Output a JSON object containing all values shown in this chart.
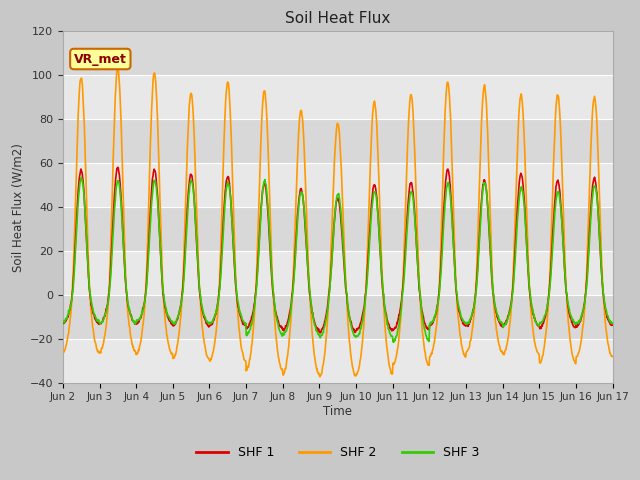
{
  "title": "Soil Heat Flux",
  "ylabel": "Soil Heat Flux (W/m2)",
  "xlabel": "Time",
  "ylim": [
    -40,
    120
  ],
  "yticks": [
    -40,
    -20,
    0,
    20,
    40,
    60,
    80,
    100,
    120
  ],
  "fig_bg": "#c8c8c8",
  "plot_bg_bands": [
    {
      "ymin": 100,
      "ymax": 120,
      "color": "#d8d8d8"
    },
    {
      "ymin": 80,
      "ymax": 100,
      "color": "#e8e8e8"
    },
    {
      "ymin": 60,
      "ymax": 80,
      "color": "#d8d8d8"
    },
    {
      "ymin": 40,
      "ymax": 60,
      "color": "#e8e8e8"
    },
    {
      "ymin": 20,
      "ymax": 40,
      "color": "#d8d8d8"
    },
    {
      "ymin": 0,
      "ymax": 20,
      "color": "#e8e8e8"
    },
    {
      "ymin": -20,
      "ymax": 0,
      "color": "#d8d8d8"
    },
    {
      "ymin": -40,
      "ymax": -20,
      "color": "#e8e8e8"
    }
  ],
  "series": {
    "SHF 1": {
      "color": "#dd0000",
      "linewidth": 1.2
    },
    "SHF 2": {
      "color": "#ff9900",
      "linewidth": 1.2
    },
    "SHF 3": {
      "color": "#33cc00",
      "linewidth": 1.2
    }
  },
  "annotation": {
    "text": "VR_met",
    "fontsize": 9,
    "bg": "#ffff99",
    "border": "#cc6600"
  },
  "xtick_labels": [
    "Jun 2",
    "Jun 3",
    "Jun 4",
    "Jun 5",
    "Jun 6",
    "Jun 7",
    "Jun 8",
    "Jun 9",
    "Jun 10",
    "Jun 11",
    "Jun 12",
    "Jun 13",
    "Jun 14",
    "Jun 15",
    "Jun 16",
    "Jun 17"
  ],
  "n_days": 15,
  "points_per_day": 96,
  "shf2_peaks": [
    99,
    103,
    101,
    92,
    97,
    93,
    84,
    78,
    88,
    91,
    97,
    95,
    91,
    91,
    90
  ],
  "shf2_troughs": [
    -26,
    -26,
    -27,
    -29,
    -30,
    -34,
    -36,
    -37,
    -36,
    -32,
    -28,
    -26,
    -27,
    -31,
    -28
  ],
  "shf1_peaks": [
    57,
    58,
    57,
    55,
    54,
    51,
    48,
    44,
    50,
    51,
    57,
    52,
    55,
    52,
    53
  ],
  "shf1_troughs": [
    -13,
    -13,
    -13,
    -14,
    -14,
    -15,
    -16,
    -17,
    -16,
    -16,
    -14,
    -14,
    -14,
    -15,
    -14
  ],
  "shf3_peaks": [
    53,
    52,
    52,
    52,
    51,
    52,
    47,
    46,
    47,
    47,
    51,
    51,
    49,
    47,
    50
  ],
  "shf3_troughs": [
    -12,
    -13,
    -12,
    -13,
    -13,
    -18,
    -18,
    -19,
    -19,
    -21,
    -13,
    -13,
    -14,
    -13,
    -13
  ]
}
